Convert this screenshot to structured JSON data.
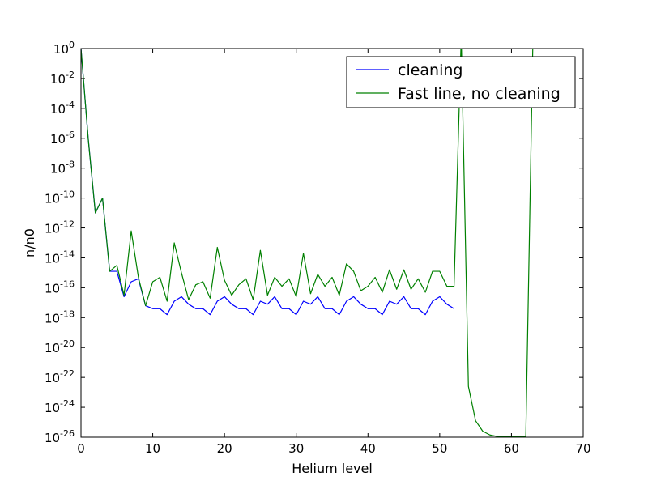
{
  "chart_data": {
    "type": "line",
    "title": "",
    "xlabel": "Helium level",
    "ylabel": "n/n0",
    "xlim": [
      0,
      70
    ],
    "ylim_exponent": [
      -26,
      0
    ],
    "y_scale": "log",
    "grid": false,
    "legend_position": "top-right",
    "x_ticks": [
      0,
      10,
      20,
      30,
      40,
      50,
      60,
      70
    ],
    "y_tick_exponents": [
      0,
      -2,
      -4,
      -6,
      -8,
      -10,
      -12,
      -14,
      -16,
      -18,
      -20,
      -22,
      -24,
      -26
    ],
    "y_tick_base": "10",
    "series": [
      {
        "name": "cleaning",
        "color": "#0000ff",
        "x": [
          0,
          1,
          2,
          3,
          4,
          5,
          6,
          7,
          8,
          9,
          10,
          11,
          12,
          13,
          14,
          15,
          16,
          17,
          18,
          19,
          20,
          21,
          22,
          23,
          24,
          25,
          26,
          27,
          28,
          29,
          30,
          31,
          32,
          33,
          34,
          35,
          36,
          37,
          38,
          39,
          40,
          41,
          42,
          43,
          44,
          45,
          46,
          47,
          48,
          49,
          50,
          51,
          52
        ],
        "y_log10": [
          0,
          -6,
          -11,
          -10,
          -14.9,
          -14.9,
          -16.6,
          -15.6,
          -15.4,
          -17.2,
          -17.4,
          -17.4,
          -17.8,
          -16.9,
          -16.6,
          -17.1,
          -17.4,
          -17.4,
          -17.8,
          -16.9,
          -16.6,
          -17.1,
          -17.4,
          -17.4,
          -17.8,
          -16.9,
          -17.1,
          -16.6,
          -17.4,
          -17.4,
          -17.8,
          -16.9,
          -17.1,
          -16.6,
          -17.4,
          -17.4,
          -17.8,
          -16.9,
          -16.6,
          -17.1,
          -17.4,
          -17.4,
          -17.8,
          -16.9,
          -17.1,
          -16.6,
          -17.4,
          -17.4,
          -17.8,
          -16.9,
          -16.6,
          -17.1,
          -17.4
        ]
      },
      {
        "name": "Fast line, no cleaning",
        "color": "#008000",
        "x": [
          0,
          1,
          2,
          3,
          4,
          5,
          6,
          7,
          8,
          9,
          10,
          11,
          12,
          13,
          14,
          15,
          16,
          17,
          18,
          19,
          20,
          21,
          22,
          23,
          24,
          25,
          26,
          27,
          28,
          29,
          30,
          31,
          32,
          33,
          34,
          35,
          36,
          37,
          38,
          39,
          40,
          41,
          42,
          43,
          44,
          45,
          46,
          47,
          48,
          49,
          50,
          51,
          52,
          53,
          54,
          55,
          56,
          57,
          58,
          59,
          60,
          61,
          62,
          63
        ],
        "y_log10": [
          0,
          -6,
          -11,
          -10,
          -14.9,
          -14.5,
          -16.5,
          -12.2,
          -15.3,
          -17.2,
          -15.6,
          -15.3,
          -16.9,
          -13,
          -15,
          -16.8,
          -15.8,
          -15.6,
          -16.7,
          -13.3,
          -15.5,
          -16.5,
          -15.8,
          -15.4,
          -16.8,
          -13.5,
          -16.5,
          -15.3,
          -15.9,
          -15.4,
          -16.6,
          -13.7,
          -16.4,
          -15.1,
          -15.9,
          -15.3,
          -16.5,
          -14.4,
          -14.9,
          -16.2,
          -15.9,
          -15.3,
          -16.3,
          -14.8,
          -16.1,
          -14.8,
          -16.1,
          -15.4,
          -16.3,
          -14.9,
          -14.9,
          -15.9,
          -15.9,
          0.8,
          -22.6,
          -24.9,
          -25.6,
          -25.85,
          -25.95,
          -25.98,
          -25.96,
          -25.95,
          -25.95,
          0.8
        ]
      }
    ]
  }
}
